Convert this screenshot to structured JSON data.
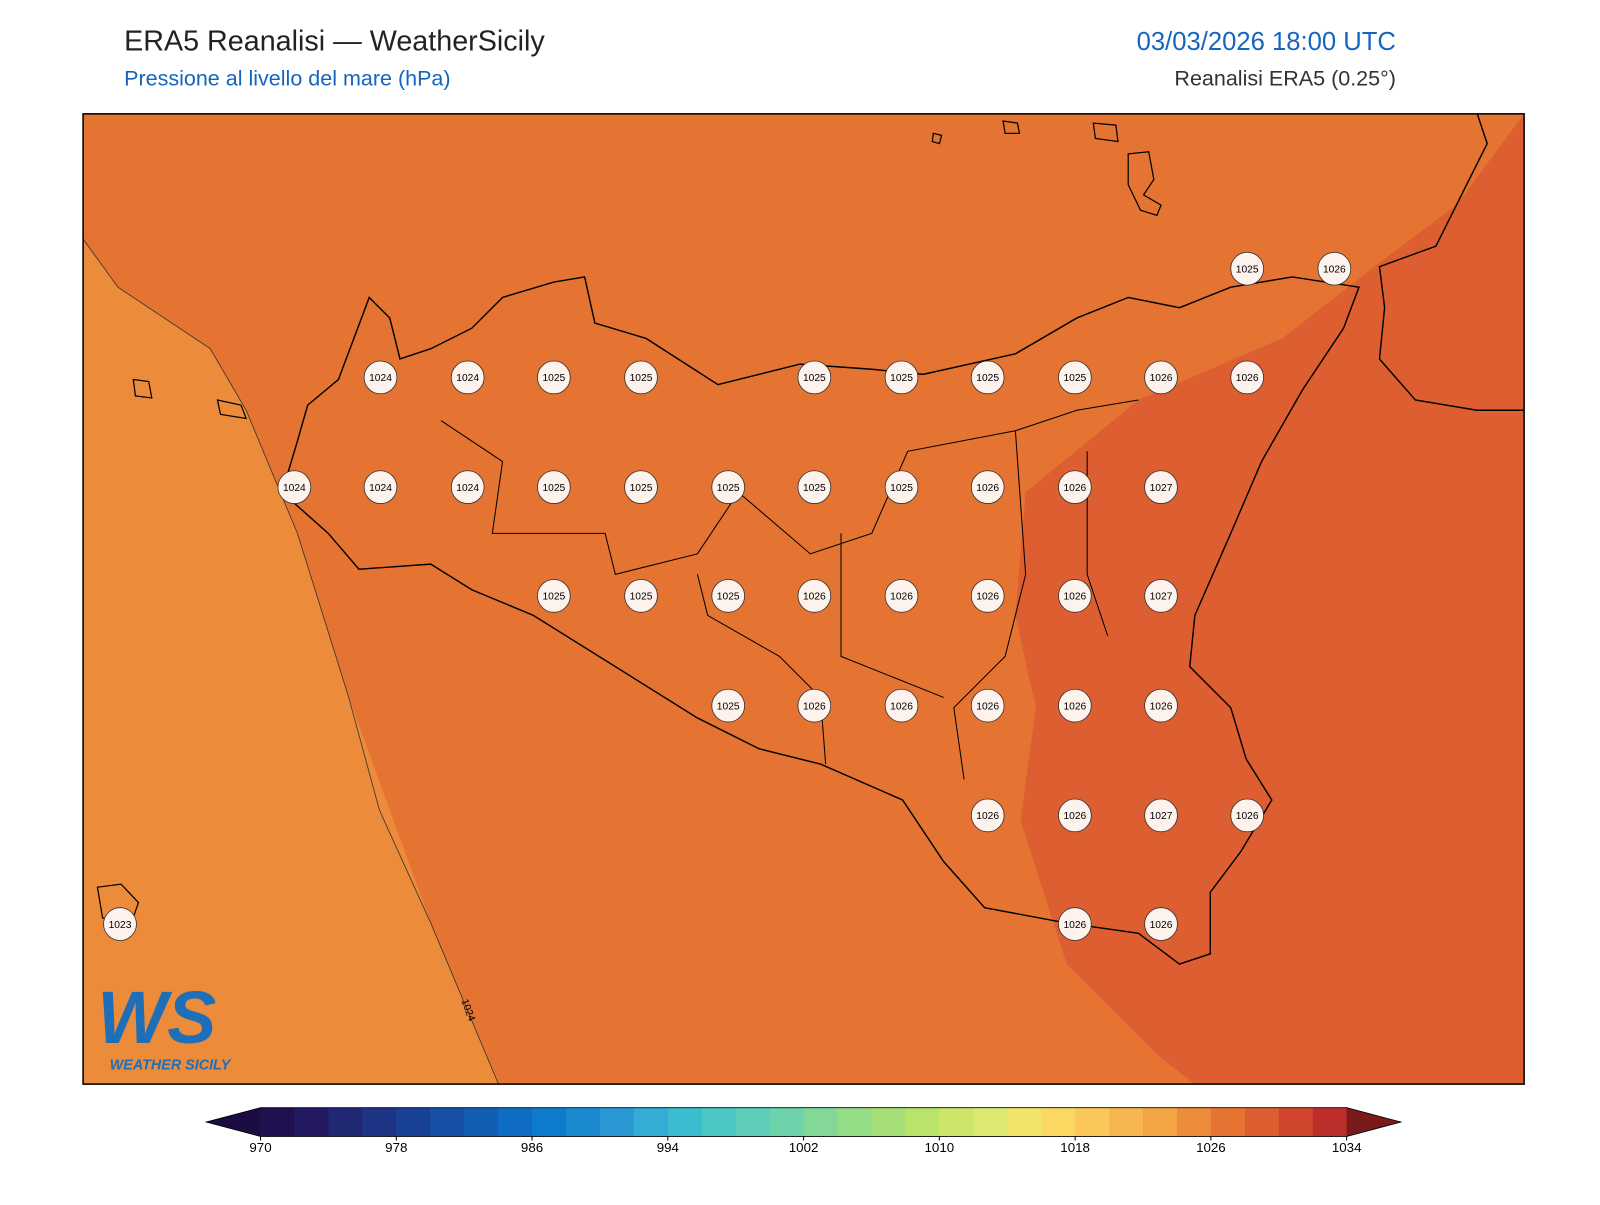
{
  "header": {
    "title": "ERA5 Reanalisi — WeatherSicily",
    "subtitle": "Pressione al livello del mare (hPa)",
    "datetime": "03/03/2026 18:00 UTC",
    "source": "Reanalisi ERA5 (0.25°)"
  },
  "map": {
    "stations": [
      1025,
      1026,
      1024,
      1024,
      1025,
      1025,
      1025,
      1025,
      1025,
      1025,
      1026,
      1026,
      1024,
      1024,
      1024,
      1025,
      1025,
      1025,
      1025,
      1025,
      1026,
      1026,
      1027,
      1025,
      1025,
      1025,
      1026,
      1026,
      1026,
      1026,
      1027,
      1025,
      1026,
      1026,
      1026,
      1026,
      1026,
      1026,
      1026,
      1027,
      1026,
      1023,
      1026,
      1026
    ],
    "contour_label": "1024"
  },
  "colorbar": {
    "lim": [
      970,
      1034
    ],
    "ticks": [
      970,
      978,
      986,
      994,
      1002,
      1010,
      1018,
      1026,
      1034
    ],
    "colors": [
      "#20104f",
      "#231a63",
      "#202874",
      "#1d3584",
      "#1a4294",
      "#1650a6",
      "#125eb5",
      "#0e6cc2",
      "#0f7bcc",
      "#1a89d0",
      "#2a98d3",
      "#35acd3",
      "#3bbdcf",
      "#4cc7c6",
      "#5dcdb9",
      "#6ed2ab",
      "#83d898",
      "#95dc86",
      "#a6df77",
      "#b9e36a",
      "#cde66a",
      "#dde870",
      "#f0e46a",
      "#fad862",
      "#fbc75a",
      "#f7b650",
      "#f3a546",
      "#ec8c3a",
      "#e57432",
      "#dd5e30",
      "#cf462d",
      "#bb2e2a"
    ],
    "under_color": "#1b0c41",
    "over_color": "#7a1a1a"
  },
  "logo": {
    "mark": "WS",
    "name": "WEATHER SICILY"
  }
}
